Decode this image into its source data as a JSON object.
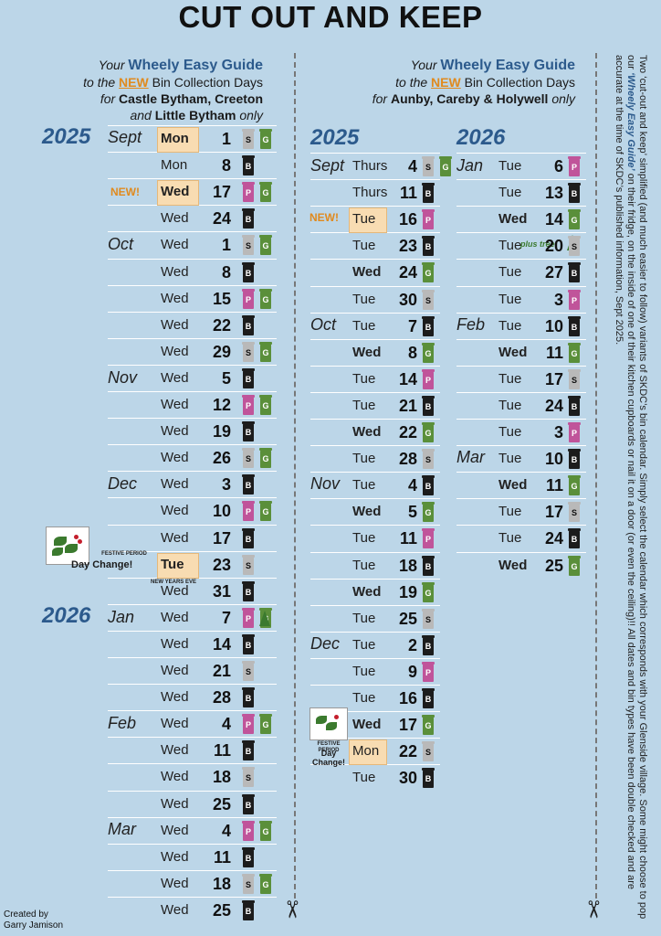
{
  "title": "CUT OUT AND KEEP",
  "guide_left": {
    "l1a": "Your",
    "l1b": "Wheely Easy Guide",
    "l2a": "to the",
    "l2b": "NEW",
    "l2c": "Bin Collection Days",
    "l3a": "for",
    "l3b": "Castle Bytham",
    "l3c": ",",
    "l3d": "Creeton",
    "l4a": "and",
    "l4b": "Little Bytham",
    "l4c": "only"
  },
  "guide_right": {
    "l1a": "Your",
    "l1b": "Wheely Easy Guide",
    "l2a": "to the",
    "l2b": "NEW",
    "l2c": "Bin Collection Days",
    "l3a": "for",
    "l3b": "Aunby",
    "l3c": ",",
    "l3d": "Careby",
    "l3e": "&",
    "l3f": "Holywell",
    "l3g": "only"
  },
  "bin_letters": {
    "B": "B",
    "S": "S",
    "P": "P",
    "G": "G"
  },
  "colors": {
    "black_bin": "#1c1c1c",
    "silver_bin": "#b9b9b9",
    "purple_bin": "#c0549a",
    "green_bin": "#5a8f3a",
    "year_blue": "#2c5a8c",
    "new_orange": "#e08a1e",
    "highlight": "#f8dcb2"
  },
  "left_years": [
    {
      "label": "2025"
    },
    {
      "label": "2026"
    }
  ],
  "left_months": [
    {
      "label": "Sept"
    },
    {
      "label": "Oct"
    },
    {
      "label": "Nov"
    },
    {
      "label": "Dec"
    },
    {
      "label": "Jan"
    },
    {
      "label": "Feb"
    },
    {
      "label": "Mar"
    }
  ],
  "left_rows": [
    {
      "day": "Mon",
      "date": "1",
      "bins": [
        "S",
        "G"
      ]
    },
    {
      "day": "Mon",
      "date": "8",
      "bins": [
        "B"
      ]
    },
    {
      "day": "Wed",
      "date": "17",
      "bins": [
        "P",
        "G"
      ]
    },
    {
      "day": "Wed",
      "date": "24",
      "bins": [
        "B"
      ]
    },
    {
      "day": "Wed",
      "date": "1",
      "bins": [
        "S",
        "G"
      ]
    },
    {
      "day": "Wed",
      "date": "8",
      "bins": [
        "B"
      ]
    },
    {
      "day": "Wed",
      "date": "15",
      "bins": [
        "P",
        "G"
      ]
    },
    {
      "day": "Wed",
      "date": "22",
      "bins": [
        "B"
      ]
    },
    {
      "day": "Wed",
      "date": "29",
      "bins": [
        "S",
        "G"
      ]
    },
    {
      "day": "Wed",
      "date": "5",
      "bins": [
        "B"
      ]
    },
    {
      "day": "Wed",
      "date": "12",
      "bins": [
        "P",
        "G"
      ]
    },
    {
      "day": "Wed",
      "date": "19",
      "bins": [
        "B"
      ]
    },
    {
      "day": "Wed",
      "date": "26",
      "bins": [
        "S",
        "G"
      ]
    },
    {
      "day": "Wed",
      "date": "3",
      "bins": [
        "B"
      ]
    },
    {
      "day": "Wed",
      "date": "10",
      "bins": [
        "P",
        "G"
      ]
    },
    {
      "day": "Wed",
      "date": "17",
      "bins": [
        "B"
      ]
    },
    {
      "day": "Tue",
      "date": "23",
      "bins": [
        "S"
      ]
    },
    {
      "day": "Wed",
      "date": "31",
      "bins": [
        "B"
      ]
    },
    {
      "day": "Wed",
      "date": "7",
      "bins": [
        "P",
        "G"
      ]
    },
    {
      "day": "Wed",
      "date": "14",
      "bins": [
        "B"
      ]
    },
    {
      "day": "Wed",
      "date": "21",
      "bins": [
        "S"
      ]
    },
    {
      "day": "Wed",
      "date": "28",
      "bins": [
        "B"
      ]
    },
    {
      "day": "Wed",
      "date": "4",
      "bins": [
        "P",
        "G"
      ]
    },
    {
      "day": "Wed",
      "date": "11",
      "bins": [
        "B"
      ]
    },
    {
      "day": "Wed",
      "date": "18",
      "bins": [
        "S"
      ]
    },
    {
      "day": "Wed",
      "date": "25",
      "bins": [
        "B"
      ]
    },
    {
      "day": "Wed",
      "date": "4",
      "bins": [
        "P",
        "G"
      ]
    },
    {
      "day": "Wed",
      "date": "11",
      "bins": [
        "B"
      ]
    },
    {
      "day": "Wed",
      "date": "18",
      "bins": [
        "S",
        "G"
      ]
    },
    {
      "day": "Wed",
      "date": "25",
      "bins": [
        "B"
      ]
    }
  ],
  "left_notes": {
    "new": "NEW!",
    "festive_small": "FESTIVE PERIOD",
    "day_change": "Day Change!",
    "new_years_eve": "NEW YEARS EVE"
  },
  "right_years": [
    {
      "label": "2025"
    },
    {
      "label": "2026"
    }
  ],
  "mid_months": [
    {
      "label": "Sept"
    },
    {
      "label": "Oct"
    },
    {
      "label": "Nov"
    },
    {
      "label": "Dec"
    }
  ],
  "mid_rows": [
    {
      "day": "Thurs",
      "date": "4",
      "bins": [
        "S",
        "G"
      ]
    },
    {
      "day": "Thurs",
      "date": "11",
      "bins": [
        "B"
      ]
    },
    {
      "day": "Tue",
      "date": "16",
      "bins": [
        "P"
      ]
    },
    {
      "day": "Tue",
      "date": "23",
      "bins": [
        "B"
      ]
    },
    {
      "day": "Wed",
      "date": "24",
      "bins": [
        "G"
      ]
    },
    {
      "day": "Tue",
      "date": "30",
      "bins": [
        "S"
      ]
    },
    {
      "day": "Tue",
      "date": "7",
      "bins": [
        "B"
      ]
    },
    {
      "day": "Wed",
      "date": "8",
      "bins": [
        "G"
      ]
    },
    {
      "day": "Tue",
      "date": "14",
      "bins": [
        "P"
      ]
    },
    {
      "day": "Tue",
      "date": "21",
      "bins": [
        "B"
      ]
    },
    {
      "day": "Wed",
      "date": "22",
      "bins": [
        "G"
      ]
    },
    {
      "day": "Tue",
      "date": "28",
      "bins": [
        "S"
      ]
    },
    {
      "day": "Tue",
      "date": "4",
      "bins": [
        "B"
      ]
    },
    {
      "day": "Wed",
      "date": "5",
      "bins": [
        "G"
      ]
    },
    {
      "day": "Tue",
      "date": "11",
      "bins": [
        "P"
      ]
    },
    {
      "day": "Tue",
      "date": "18",
      "bins": [
        "B"
      ]
    },
    {
      "day": "Wed",
      "date": "19",
      "bins": [
        "G"
      ]
    },
    {
      "day": "Tue",
      "date": "25",
      "bins": [
        "S"
      ]
    },
    {
      "day": "Tue",
      "date": "2",
      "bins": [
        "B"
      ]
    },
    {
      "day": "Tue",
      "date": "9",
      "bins": [
        "P"
      ]
    },
    {
      "day": "Tue",
      "date": "16",
      "bins": [
        "B"
      ]
    },
    {
      "day": "Wed",
      "date": "17",
      "bins": [
        "G"
      ]
    },
    {
      "day": "Mon",
      "date": "22",
      "bins": [
        "S"
      ]
    },
    {
      "day": "Tue",
      "date": "30",
      "bins": [
        "B"
      ]
    }
  ],
  "mid_notes": {
    "new": "NEW!",
    "festive_small": "FESTIVE PERIOD",
    "day_change": "Day Change!"
  },
  "r2_months": [
    {
      "label": "Jan"
    },
    {
      "label": "Feb"
    },
    {
      "label": "Mar"
    }
  ],
  "r2_rows": [
    {
      "day": "Tue",
      "date": "6",
      "bins": [
        "P"
      ]
    },
    {
      "day": "Tue",
      "date": "13",
      "bins": [
        "B"
      ]
    },
    {
      "day": "Wed",
      "date": "14",
      "bins": [
        "G"
      ]
    },
    {
      "day": "Tue",
      "date": "20",
      "bins": [
        "S"
      ]
    },
    {
      "day": "Tue",
      "date": "27",
      "bins": [
        "B"
      ]
    },
    {
      "day": "Tue",
      "date": "3",
      "bins": [
        "P"
      ]
    },
    {
      "day": "Tue",
      "date": "10",
      "bins": [
        "B"
      ]
    },
    {
      "day": "Wed",
      "date": "11",
      "bins": [
        "G"
      ]
    },
    {
      "day": "Tue",
      "date": "17",
      "bins": [
        "S"
      ]
    },
    {
      "day": "Tue",
      "date": "24",
      "bins": [
        "B"
      ]
    },
    {
      "day": "Tue",
      "date": "3",
      "bins": [
        "P"
      ]
    },
    {
      "day": "Tue",
      "date": "10",
      "bins": [
        "B"
      ]
    },
    {
      "day": "Wed",
      "date": "11",
      "bins": [
        "G"
      ]
    },
    {
      "day": "Tue",
      "date": "17",
      "bins": [
        "S"
      ]
    },
    {
      "day": "Tue",
      "date": "24",
      "bins": [
        "B"
      ]
    },
    {
      "day": "Wed",
      "date": "25",
      "bins": [
        "G"
      ]
    }
  ],
  "r2_notes": {
    "plus_tree": "plus tree"
  },
  "side_text": {
    "p1": "Two ‘cut-out and keep’ simplified (and much easier to follow) variants of SKDC’s bin calendar. Simply select the calendar which corresponds with your Glenside village.",
    "p2a": "Some might choose to pop our",
    "p2b": "‘Wheely Easy Guide’",
    "p2c": "on their fridge, on the inside of one of their kitchen cupboards or nail it on a door (or even the ceiling)!!",
    "p3": "All dates and bin types have been double checked and are accurate at the time of SKDC’s published information, Sept 2025."
  },
  "icons": {
    "scissors": "scissors-icon",
    "tree": "christmas-tree-icon",
    "holly": "holly-icon"
  },
  "scissors_glyph": "✂",
  "credit": {
    "line1": "Created by",
    "line2": "Garry Jamison"
  }
}
